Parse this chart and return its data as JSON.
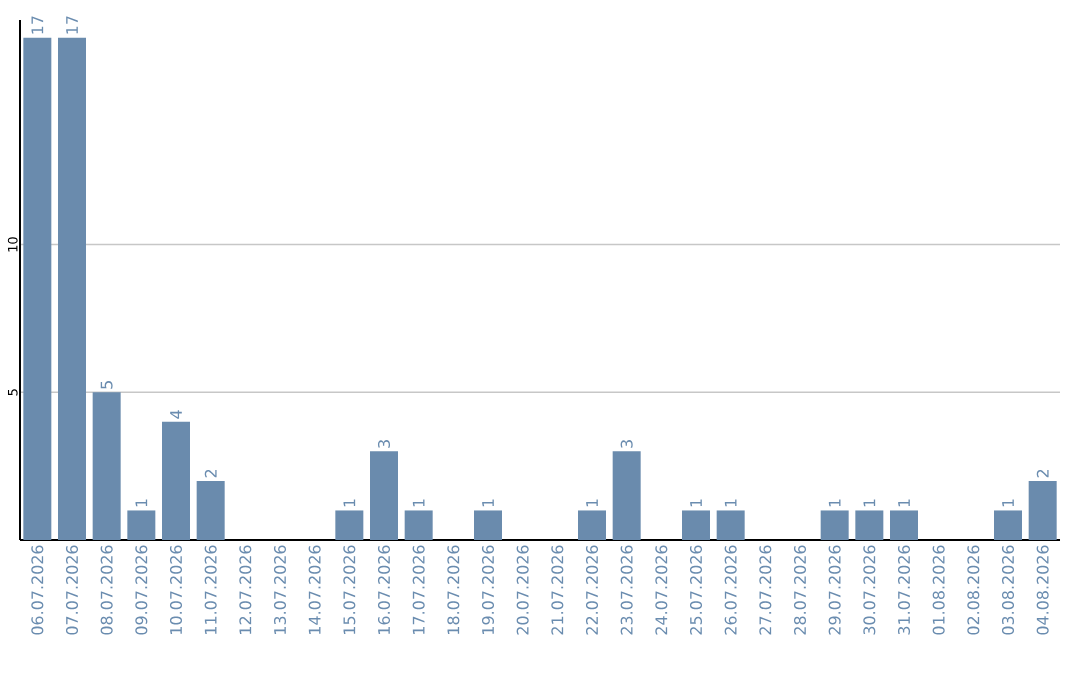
{
  "chart_data": {
    "type": "bar",
    "color": "#6a8bad",
    "categories": [
      "06.07.2026",
      "07.07.2026",
      "08.07.2026",
      "09.07.2026",
      "10.07.2026",
      "11.07.2026",
      "12.07.2026",
      "13.07.2026",
      "14.07.2026",
      "15.07.2026",
      "16.07.2026",
      "17.07.2026",
      "18.07.2026",
      "19.07.2026",
      "20.07.2026",
      "21.07.2026",
      "22.07.2026",
      "23.07.2026",
      "24.07.2026",
      "25.07.2026",
      "26.07.2026",
      "27.07.2026",
      "28.07.2026",
      "29.07.2026",
      "30.07.2026",
      "31.07.2026",
      "01.08.2026",
      "02.08.2026",
      "03.08.2026",
      "04.08.2026"
    ],
    "values": [
      17,
      17,
      5,
      1,
      4,
      2,
      0,
      0,
      0,
      1,
      3,
      1,
      0,
      1,
      0,
      0,
      1,
      3,
      0,
      1,
      1,
      0,
      0,
      1,
      1,
      1,
      0,
      0,
      1,
      2
    ],
    "value_labels": [
      "17",
      "17",
      "5",
      "1",
      "4",
      "2",
      null,
      null,
      null,
      "1",
      "3",
      "1",
      null,
      "1",
      null,
      null,
      "1",
      "3",
      null,
      "1",
      "1",
      null,
      null,
      "1",
      "1",
      "1",
      null,
      null,
      "1",
      "2"
    ],
    "ylim": [
      0,
      17.6
    ],
    "yticks": [
      5,
      10
    ],
    "grid": "y"
  }
}
